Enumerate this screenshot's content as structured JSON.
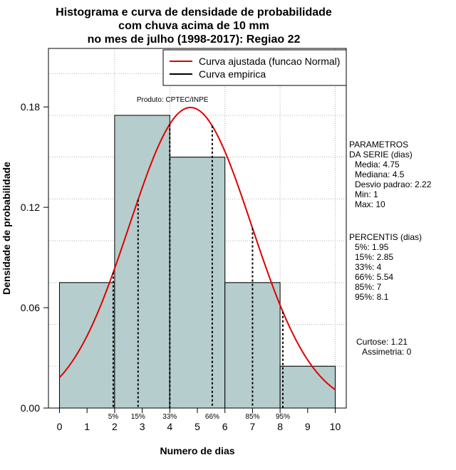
{
  "chart_data": {
    "type": "bar",
    "title_lines": [
      "Histograma e curva de densidade de probabilidade",
      "com chuva acima de 10 mm",
      "no mes de julho (1998-2017): Regiao 22"
    ],
    "xlabel": "Numero de dias",
    "ylabel": "Densidade de probabilidade",
    "xlim": [
      -0.4,
      10.4
    ],
    "ylim": [
      0,
      0.215
    ],
    "x_ticks": [
      "0",
      "1",
      "2",
      "3",
      "4",
      "5",
      "6",
      "7",
      "8",
      "9",
      "10"
    ],
    "y_ticks": [
      "0.00",
      "0.06",
      "0.12",
      "0.18"
    ],
    "grid_x": [
      2,
      4,
      6,
      8,
      10
    ],
    "grid_y": [
      0.025,
      0.05,
      0.075,
      0.1,
      0.125,
      0.15,
      0.175,
      0.2
    ],
    "bins": [
      {
        "from": 0,
        "to": 2,
        "density": 0.075
      },
      {
        "from": 2,
        "to": 4,
        "density": 0.175
      },
      {
        "from": 4,
        "to": 6,
        "density": 0.15
      },
      {
        "from": 6,
        "to": 8,
        "density": 0.075
      },
      {
        "from": 8,
        "to": 10,
        "density": 0.025
      }
    ],
    "normal_curve": {
      "mean": 4.75,
      "sd": 2.22,
      "x_from": 0,
      "x_to": 10
    },
    "percentile_lines": [
      {
        "label": "5%",
        "x": 1.95
      },
      {
        "label": "15%",
        "x": 2.85
      },
      {
        "label": "33%",
        "x": 4.0
      },
      {
        "label": "66%",
        "x": 5.54
      },
      {
        "label": "85%",
        "x": 7.0
      },
      {
        "label": "95%",
        "x": 8.1
      }
    ],
    "legend": {
      "position": "top-right",
      "entries": [
        {
          "label": "Curva ajustada (funcao Normal)",
          "color": "#e00000"
        },
        {
          "label": "Curva empirica",
          "color": "#000000"
        }
      ]
    },
    "source_note": "Produto: CPTEC/INPE",
    "bar_fill": "#b6cdcd",
    "curve_color": "#e00000",
    "parametros": {
      "title": [
        "PARAMETROS",
        "DA SERIE (dias)"
      ],
      "lines": [
        "Media: 4.75",
        "Mediana: 4.5",
        "Desvio padrao: 2.22",
        "Min: 1",
        "Max: 10"
      ]
    },
    "percentis": {
      "title": "PERCENTIS (dias)",
      "lines": [
        "5%: 1.95",
        "15%: 2.85",
        "33%: 4",
        "66%: 5.54",
        "85%: 7",
        "95%: 8.1"
      ]
    },
    "shape": {
      "curtose": "Curtose: 1.21",
      "assimetria": "Assimetria: 0"
    }
  }
}
